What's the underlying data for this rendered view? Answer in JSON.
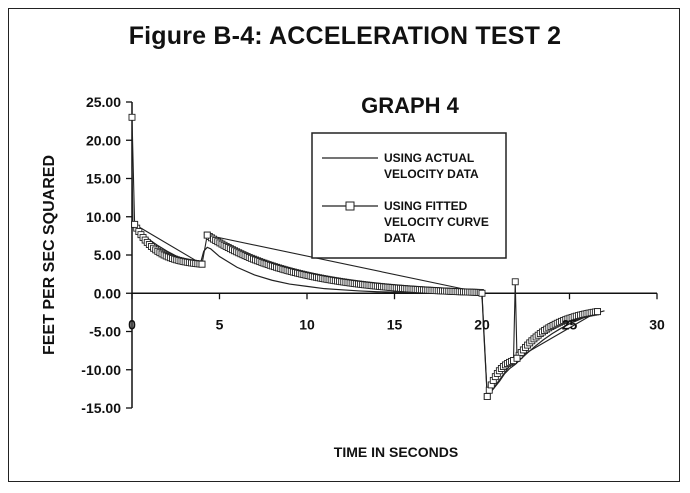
{
  "figure_title": "Figure B-4:  ACCELERATION TEST 2",
  "chart_data": {
    "type": "line",
    "title": "GRAPH 4",
    "xlabel": "TIME IN SECONDS",
    "ylabel": "FEET PER SEC SQUARED",
    "xlim": [
      0,
      30
    ],
    "ylim": [
      -15,
      25
    ],
    "x_ticks": [
      "0",
      "5",
      "10",
      "15",
      "20",
      "25",
      "30"
    ],
    "y_ticks": [
      "25.00",
      "20.00",
      "15.00",
      "10.00",
      "5.00",
      "0.00",
      "-5.00",
      "-10.00",
      "-15.00"
    ],
    "grid": false,
    "legend": {
      "placement": "top-right",
      "entries": [
        {
          "line1": "USING ACTUAL",
          "line2": "VELOCITY DATA",
          "marker": "none"
        },
        {
          "line1": "USING FITTED",
          "line2": "VELOCITY CURVE",
          "line3": "DATA",
          "marker": "square"
        }
      ]
    },
    "series": [
      {
        "marker": "none",
        "x": [
          0,
          0.05,
          0.2,
          0.5,
          1,
          1.5,
          2,
          2.5,
          3,
          3.5,
          3.9,
          4.1,
          4.3,
          4.5,
          5,
          6,
          7,
          8,
          9,
          10,
          11,
          12,
          13,
          14,
          15,
          16,
          17,
          18,
          19,
          20,
          20.1,
          20.3,
          21,
          21.3,
          21.6,
          21.9,
          22.5,
          23,
          23.5,
          24,
          24.5,
          25,
          25.5,
          26,
          26.5,
          27
        ],
        "y": [
          16.5,
          9.0,
          8.7,
          8.0,
          7.0,
          6.2,
          5.5,
          4.9,
          4.4,
          4.0,
          3.8,
          5.5,
          6.0,
          5.8,
          4.8,
          3.4,
          2.4,
          1.7,
          1.2,
          0.9,
          0.6,
          0.45,
          0.3,
          0.2,
          0.15,
          0.1,
          0.05,
          0.0,
          -0.1,
          -0.2,
          -5.0,
          -13.5,
          -11.5,
          -10.5,
          -9.8,
          -9.3,
          -8.0,
          -7.0,
          -6.1,
          -5.3,
          -4.6,
          -4.0,
          -3.5,
          -3.0,
          -2.6,
          -2.3
        ]
      },
      {
        "marker": "square",
        "x": [
          0,
          0.15,
          4.0,
          4.3,
          19.9,
          20.0,
          20.3,
          21.8,
          21.9,
          22.0,
          26.6
        ],
        "y": [
          23.0,
          9.0,
          3.8,
          7.6,
          0.1,
          0.0,
          -13.5,
          -8.8,
          1.5,
          -8.5,
          -2.4
        ],
        "segments": [
          {
            "x0": 0.15,
            "x1": 4.0,
            "y0": 9.0,
            "y1": 3.8
          },
          {
            "x0": 4.3,
            "x1": 19.9,
            "y0": 7.6,
            "y1": 0.1
          },
          {
            "x0": 20.3,
            "x1": 21.8,
            "y0": -13.5,
            "y1": -8.8
          },
          {
            "x0": 22.0,
            "x1": 26.6,
            "y0": -8.5,
            "y1": -2.4
          }
        ]
      }
    ]
  }
}
